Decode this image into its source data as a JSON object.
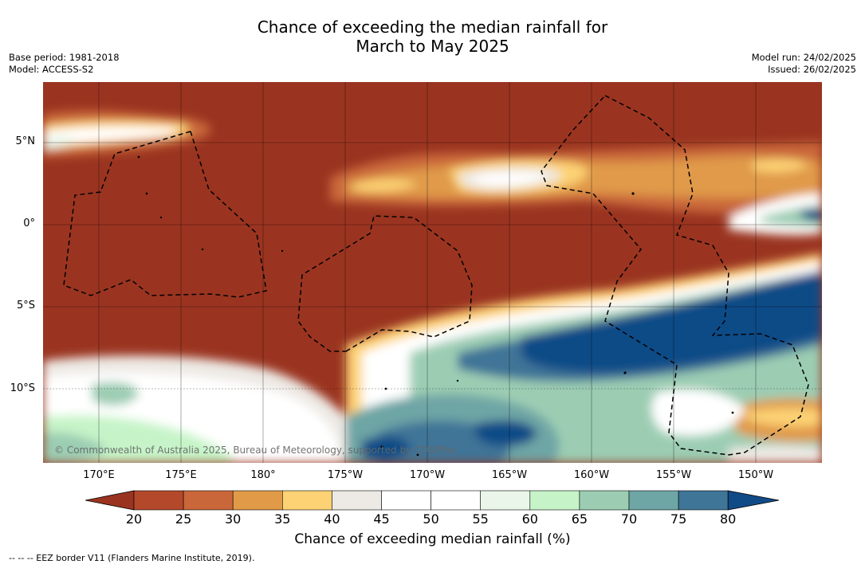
{
  "header": {
    "title_line1": "Chance of exceeding the median rainfall for",
    "title_line2": "March to May 2025",
    "base_period": "Base period: 1981-2018",
    "model": "Model: ACCESS-S2",
    "model_run": "Model run: 24/02/2025",
    "issued": "Issued: 26/02/2025"
  },
  "map": {
    "lat_labels": [
      "5°N",
      "0°",
      "5°S",
      "10°S"
    ],
    "lon_labels": [
      "170°E",
      "175°E",
      "180°",
      "175°W",
      "170°W",
      "165°W",
      "160°W",
      "155°W",
      "150°W"
    ],
    "copyright": "© Commonwealth of Australia 2025, Bureau of Meteorology, supported by COSPPac",
    "eez_note": "--  --  -- EEZ border V11 (Flanders Marine Institute, 2019)."
  },
  "colorbar": {
    "ticks": [
      "20",
      "25",
      "30",
      "35",
      "40",
      "45",
      "50",
      "55",
      "60",
      "65",
      "70",
      "75",
      "80"
    ],
    "colors": [
      "#9a3420",
      "#b4482b",
      "#c9673a",
      "#e09a48",
      "#fdd274",
      "#ede9e4",
      "#ffffff",
      "#ffffff",
      "#eaf6ea",
      "#c6f4c8",
      "#9ccdb3",
      "#6ea5a5",
      "#3f7597",
      "#114b87"
    ],
    "label": "Chance of exceeding median rainfall (%)"
  }
}
